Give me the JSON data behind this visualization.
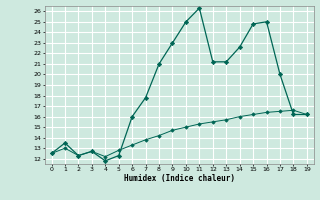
{
  "title": "",
  "xlabel": "Humidex (Indice chaleur)",
  "ylabel": "",
  "bg_color": "#cee9df",
  "grid_color": "#ffffff",
  "line_color": "#006655",
  "marker_color": "#006655",
  "x": [
    0,
    1,
    2,
    3,
    4,
    5,
    6,
    7,
    8,
    9,
    10,
    11,
    12,
    13,
    14,
    15,
    16,
    17,
    18,
    19
  ],
  "y_main": [
    12.5,
    13.5,
    12.3,
    12.7,
    11.8,
    12.3,
    16.0,
    17.8,
    21.0,
    23.0,
    25.0,
    26.3,
    21.2,
    21.2,
    22.6,
    24.8,
    25.0,
    20.0,
    16.2,
    16.2
  ],
  "y_line2": [
    12.5,
    13.0,
    12.3,
    12.7,
    12.2,
    12.8,
    13.3,
    13.8,
    14.2,
    14.7,
    15.0,
    15.3,
    15.5,
    15.7,
    16.0,
    16.2,
    16.4,
    16.5,
    16.6,
    16.2
  ],
  "ylim": [
    11.5,
    26.5
  ],
  "xlim": [
    -0.5,
    19.5
  ],
  "yticks": [
    12,
    13,
    14,
    15,
    16,
    17,
    18,
    19,
    20,
    21,
    22,
    23,
    24,
    25,
    26
  ],
  "xticks": [
    0,
    1,
    2,
    3,
    4,
    5,
    6,
    7,
    8,
    9,
    10,
    11,
    12,
    13,
    14,
    15,
    16,
    17,
    18,
    19
  ]
}
